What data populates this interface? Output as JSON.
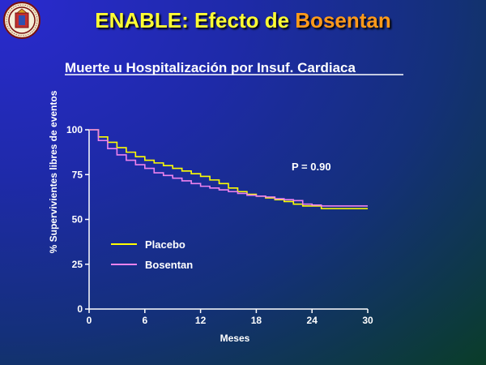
{
  "slide": {
    "title_main": "ENABLE: Efecto de ",
    "title_accent": "Bosentan"
  },
  "chart_data": {
    "type": "line",
    "title": "Muerte u Hospitalización por Insuf. Cardiaca",
    "xlabel": "Meses",
    "ylabel": "% Supervivientes libres de eventos",
    "xlim": [
      0,
      30
    ],
    "ylim": [
      0,
      100
    ],
    "xticks": [
      0,
      6,
      12,
      18,
      24,
      30
    ],
    "yticks": [
      0,
      25,
      50,
      75,
      100
    ],
    "legend_position": "lower-left",
    "annotation": "P = 0.90",
    "series": [
      {
        "name": "Placebo",
        "color": "#ffff00",
        "x": [
          0,
          1,
          2,
          3,
          4,
          5,
          6,
          7,
          8,
          9,
          10,
          11,
          12,
          13,
          14,
          15,
          16,
          17,
          18,
          19,
          20,
          21,
          22,
          23,
          24,
          25,
          26,
          27,
          28,
          29,
          30
        ],
        "y": [
          100,
          96,
          93,
          90,
          87.5,
          85,
          83,
          81.5,
          80,
          78.5,
          77,
          75.5,
          74,
          72,
          70,
          67.5,
          65.5,
          64,
          63,
          62,
          61,
          60,
          58.5,
          57.5,
          57.5,
          56,
          56,
          56,
          56,
          56,
          56
        ]
      },
      {
        "name": "Bosentan",
        "color": "#ee82ee",
        "x": [
          0,
          1,
          2,
          3,
          4,
          5,
          6,
          7,
          8,
          9,
          10,
          11,
          12,
          13,
          14,
          15,
          16,
          17,
          18,
          19,
          20,
          21,
          22,
          23,
          24,
          25,
          26,
          27,
          28,
          29,
          30
        ],
        "y": [
          100,
          94,
          89.5,
          86,
          83,
          80.5,
          78.5,
          76,
          74.5,
          73,
          71.5,
          70,
          68.5,
          67.5,
          66.5,
          65.5,
          64.5,
          63.5,
          63,
          62.5,
          61.5,
          61,
          60.5,
          58.5,
          58,
          57.5,
          57.5,
          57.5,
          57.5,
          57.5,
          57.5
        ]
      }
    ]
  }
}
